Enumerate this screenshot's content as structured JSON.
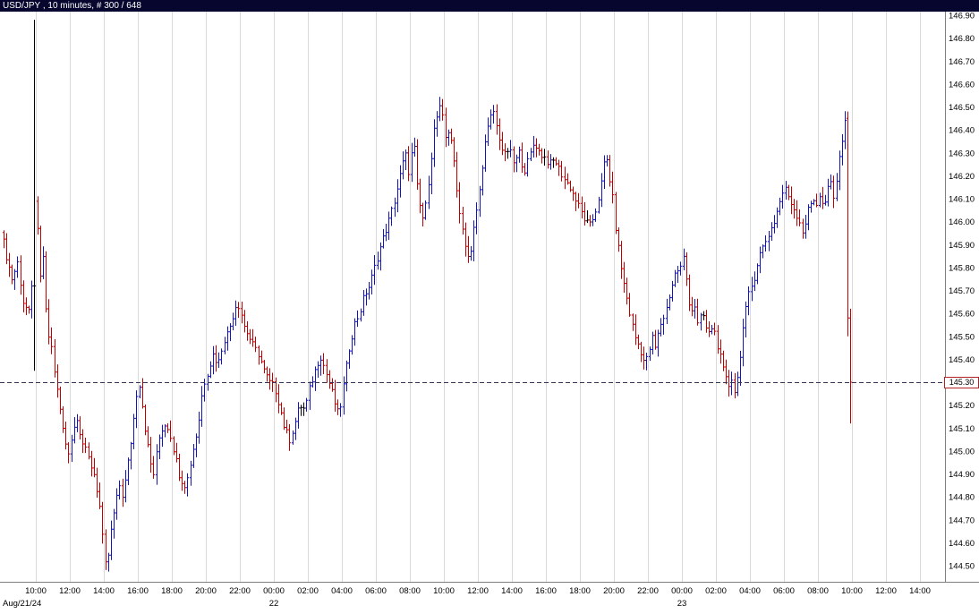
{
  "titlebar": {
    "title": "USD/JPY , 10 minutes, # 300 / 648"
  },
  "chart_data": {
    "type": "bar",
    "subtype": "ohlc-bars",
    "symbol": "USD/JPY",
    "interval": "10 minutes",
    "bar_counter": "# 300 / 648",
    "title": "USD/JPY , 10 minutes, # 300 / 648",
    "current_price_label": "145.30",
    "reference_line": {
      "price": 145.3,
      "style": "dashed"
    },
    "y_ticks": [
      "146.90",
      "146.80",
      "146.70",
      "146.60",
      "146.50",
      "146.40",
      "146.30",
      "146.20",
      "146.10",
      "146.00",
      "145.90",
      "145.80",
      "145.70",
      "145.60",
      "145.50",
      "145.40",
      "145.30",
      "145.20",
      "145.10",
      "145.00",
      "144.90",
      "144.80",
      "144.70",
      "144.60",
      "144.50"
    ],
    "y_axis_range": [
      144.5,
      146.9
    ],
    "grid": "vertical-only",
    "x_ticks": [
      {
        "label": "10:00",
        "t": 2
      },
      {
        "label": "12:00",
        "t": 4
      },
      {
        "label": "14:00",
        "t": 6
      },
      {
        "label": "16:00",
        "t": 8
      },
      {
        "label": "18:00",
        "t": 10
      },
      {
        "label": "20:00",
        "t": 12
      },
      {
        "label": "22:00",
        "t": 14
      },
      {
        "label": "00:00",
        "t": 16
      },
      {
        "label": "02:00",
        "t": 18
      },
      {
        "label": "04:00",
        "t": 20
      },
      {
        "label": "06:00",
        "t": 22
      },
      {
        "label": "08:00",
        "t": 24
      },
      {
        "label": "10:00",
        "t": 26
      },
      {
        "label": "12:00",
        "t": 28
      },
      {
        "label": "14:00",
        "t": 30
      },
      {
        "label": "16:00",
        "t": 32
      },
      {
        "label": "18:00",
        "t": 34
      },
      {
        "label": "20:00",
        "t": 36
      },
      {
        "label": "22:00",
        "t": 38
      },
      {
        "label": "00:00",
        "t": 40
      },
      {
        "label": "02:00",
        "t": 42
      },
      {
        "label": "04:00",
        "t": 44
      },
      {
        "label": "06:00",
        "t": 46
      },
      {
        "label": "08:00",
        "t": 48
      },
      {
        "label": "10:00",
        "t": 50
      },
      {
        "label": "12:00",
        "t": 52
      },
      {
        "label": "14:00",
        "t": 54
      }
    ],
    "day_labels": [
      {
        "label": "Aug/21/24",
        "t": 0,
        "align": "left"
      },
      {
        "label": "22",
        "t": 16
      },
      {
        "label": "23",
        "t": 40
      }
    ],
    "bars_visible": 300,
    "time_span_hours": 50,
    "path": [
      [
        0,
        145.97
      ],
      [
        0.33,
        145.85
      ],
      [
        0.67,
        145.75
      ],
      [
        1,
        145.82
      ],
      [
        1.33,
        145.65
      ],
      [
        1.67,
        145.6
      ],
      [
        1.83,
        145.7
      ],
      [
        2,
        146.1
      ],
      [
        2.17,
        145.95
      ],
      [
        2.33,
        145.75
      ],
      [
        2.5,
        145.85
      ],
      [
        2.67,
        145.6
      ],
      [
        2.83,
        145.5
      ],
      [
        3,
        145.45
      ],
      [
        3.25,
        145.3
      ],
      [
        3.5,
        145.18
      ],
      [
        3.75,
        145.05
      ],
      [
        4,
        145
      ],
      [
        4.25,
        145.08
      ],
      [
        4.5,
        145.15
      ],
      [
        4.75,
        145.05
      ],
      [
        5,
        145
      ],
      [
        5.25,
        144.95
      ],
      [
        5.5,
        144.9
      ],
      [
        5.75,
        144.8
      ],
      [
        5.9,
        144.72
      ],
      [
        6.1,
        144.52
      ],
      [
        6.25,
        144.48
      ],
      [
        6.4,
        144.6
      ],
      [
        6.6,
        144.7
      ],
      [
        6.8,
        144.78
      ],
      [
        7,
        144.85
      ],
      [
        7.2,
        144.8
      ],
      [
        7.4,
        144.9
      ],
      [
        7.6,
        145
      ],
      [
        7.8,
        145.12
      ],
      [
        8,
        145.25
      ],
      [
        8.2,
        145.3
      ],
      [
        8.4,
        145.15
      ],
      [
        8.6,
        145.05
      ],
      [
        8.8,
        144.95
      ],
      [
        9,
        144.9
      ],
      [
        9.3,
        145.05
      ],
      [
        9.6,
        145.12
      ],
      [
        9.9,
        145.1
      ],
      [
        10.2,
        145
      ],
      [
        10.5,
        144.9
      ],
      [
        10.8,
        144.85
      ],
      [
        11,
        144.88
      ],
      [
        11.3,
        145
      ],
      [
        11.6,
        145.1
      ],
      [
        11.9,
        145.28
      ],
      [
        12.2,
        145.35
      ],
      [
        12.5,
        145.42
      ],
      [
        12.8,
        145.38
      ],
      [
        13.1,
        145.48
      ],
      [
        13.4,
        145.52
      ],
      [
        13.7,
        145.6
      ],
      [
        13.9,
        145.65
      ],
      [
        14.1,
        145.62
      ],
      [
        14.3,
        145.55
      ],
      [
        14.6,
        145.5
      ],
      [
        14.9,
        145.45
      ],
      [
        15.2,
        145.42
      ],
      [
        15.5,
        145.35
      ],
      [
        15.8,
        145.3
      ],
      [
        16.1,
        145.28
      ],
      [
        16.4,
        145.2
      ],
      [
        16.7,
        145.1
      ],
      [
        17,
        145.05
      ],
      [
        17.3,
        145.12
      ],
      [
        17.6,
        145.2
      ],
      [
        17.9,
        145.18
      ],
      [
        18.2,
        145.28
      ],
      [
        18.5,
        145.35
      ],
      [
        18.8,
        145.42
      ],
      [
        19.1,
        145.35
      ],
      [
        19.4,
        145.28
      ],
      [
        19.7,
        145.2
      ],
      [
        19.9,
        145.15
      ],
      [
        20.2,
        145.3
      ],
      [
        20.5,
        145.45
      ],
      [
        20.8,
        145.55
      ],
      [
        21.1,
        145.6
      ],
      [
        21.4,
        145.68
      ],
      [
        21.7,
        145.72
      ],
      [
        22,
        145.8
      ],
      [
        22.3,
        145.88
      ],
      [
        22.6,
        145.95
      ],
      [
        22.9,
        146.02
      ],
      [
        23.2,
        146.1
      ],
      [
        23.5,
        146.2
      ],
      [
        23.8,
        146.3
      ],
      [
        24,
        146.22
      ],
      [
        24.3,
        146.35
      ],
      [
        24.5,
        146.15
      ],
      [
        24.7,
        146.05
      ],
      [
        24.9,
        146
      ],
      [
        25.2,
        146.2
      ],
      [
        25.5,
        146.4
      ],
      [
        25.8,
        146.5
      ],
      [
        26,
        146.45
      ],
      [
        26.2,
        146.35
      ],
      [
        26.4,
        146.42
      ],
      [
        26.6,
        146.3
      ],
      [
        26.8,
        146.15
      ],
      [
        27,
        146.05
      ],
      [
        27.2,
        145.95
      ],
      [
        27.4,
        145.88
      ],
      [
        27.6,
        145.82
      ],
      [
        27.8,
        145.95
      ],
      [
        28,
        146.05
      ],
      [
        28.2,
        146.15
      ],
      [
        28.4,
        146.3
      ],
      [
        28.6,
        146.38
      ],
      [
        28.8,
        146.45
      ],
      [
        29,
        146.48
      ],
      [
        29.2,
        146.4
      ],
      [
        29.4,
        146.35
      ],
      [
        29.6,
        146.28
      ],
      [
        29.9,
        146.32
      ],
      [
        30.2,
        146.25
      ],
      [
        30.5,
        146.3
      ],
      [
        30.8,
        146.22
      ],
      [
        31.1,
        146.28
      ],
      [
        31.4,
        146.35
      ],
      [
        31.7,
        146.3
      ],
      [
        32,
        146.28
      ],
      [
        32.3,
        146.25
      ],
      [
        32.6,
        146.27
      ],
      [
        32.9,
        146.22
      ],
      [
        33.2,
        146.18
      ],
      [
        33.5,
        146.15
      ],
      [
        33.8,
        146.1
      ],
      [
        34.1,
        146.05
      ],
      [
        34.4,
        146
      ],
      [
        34.7,
        145.98
      ],
      [
        35,
        146.05
      ],
      [
        35.3,
        146.15
      ],
      [
        35.6,
        146.3
      ],
      [
        35.8,
        146.2
      ],
      [
        36,
        146.1
      ],
      [
        36.2,
        145.95
      ],
      [
        36.4,
        145.85
      ],
      [
        36.6,
        145.75
      ],
      [
        36.8,
        145.68
      ],
      [
        37,
        145.6
      ],
      [
        37.3,
        145.5
      ],
      [
        37.6,
        145.45
      ],
      [
        37.9,
        145.38
      ],
      [
        38.1,
        145.42
      ],
      [
        38.3,
        145.5
      ],
      [
        38.5,
        145.45
      ],
      [
        38.8,
        145.55
      ],
      [
        39.1,
        145.6
      ],
      [
        39.4,
        145.7
      ],
      [
        39.7,
        145.78
      ],
      [
        40,
        145.8
      ],
      [
        40.2,
        145.85
      ],
      [
        40.4,
        145.7
      ],
      [
        40.6,
        145.6
      ],
      [
        40.8,
        145.65
      ],
      [
        41,
        145.55
      ],
      [
        41.3,
        145.6
      ],
      [
        41.6,
        145.5
      ],
      [
        41.9,
        145.55
      ],
      [
        42.2,
        145.45
      ],
      [
        42.5,
        145.35
      ],
      [
        42.8,
        145.28
      ],
      [
        43,
        145.32
      ],
      [
        43.2,
        145.25
      ],
      [
        43.4,
        145.35
      ],
      [
        43.6,
        145.5
      ],
      [
        43.8,
        145.6
      ],
      [
        44,
        145.68
      ],
      [
        44.3,
        145.75
      ],
      [
        44.6,
        145.85
      ],
      [
        44.9,
        145.9
      ],
      [
        45.2,
        145.95
      ],
      [
        45.5,
        146
      ],
      [
        45.8,
        146.08
      ],
      [
        46.1,
        146.15
      ],
      [
        46.4,
        146.1
      ],
      [
        46.7,
        146.05
      ],
      [
        47,
        146
      ],
      [
        47.2,
        145.95
      ],
      [
        47.5,
        146.05
      ],
      [
        47.8,
        146.1
      ],
      [
        48,
        146.08
      ],
      [
        48.2,
        146.12
      ],
      [
        48.4,
        146.05
      ],
      [
        48.6,
        146.12
      ],
      [
        48.8,
        146.18
      ],
      [
        49,
        146.1
      ],
      [
        49.2,
        146.2
      ],
      [
        49.4,
        146.3
      ],
      [
        49.55,
        146.4
      ],
      [
        49.67,
        146.45
      ],
      [
        49.83,
        145.6
      ],
      [
        50,
        145.3
      ]
    ],
    "overrides": {
      "11": [
        145.72,
        146.88,
        145.35,
        145.72
      ],
      "298": [
        146.45,
        146.48,
        145.5,
        145.58
      ],
      "299": [
        145.58,
        145.62,
        145.12,
        145.3
      ]
    },
    "colors": {
      "up": "#1414b8",
      "down": "#c00000",
      "flat": "#000000",
      "grid": "#d9d9d9",
      "dashed_line": "#333355",
      "axis_line": "#808080",
      "tag_border": "#b22222",
      "titlebar_bg": "#06062e",
      "titlebar_text": "#ffffff"
    }
  }
}
